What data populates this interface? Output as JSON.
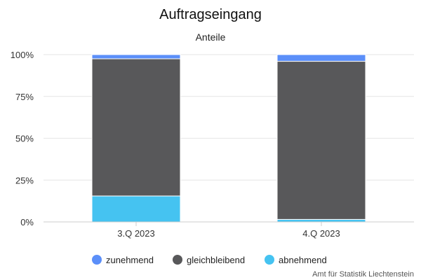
{
  "chart_data": {
    "type": "bar",
    "stacked": true,
    "title": "Auftragseingang",
    "subtitle": "Anteile",
    "categories": [
      "3.Q 2023",
      "4.Q 2023"
    ],
    "series": [
      {
        "name": "zunehmend",
        "values": [
          2.5,
          4
        ],
        "color": "#5b8ff9"
      },
      {
        "name": "gleichbleibend",
        "values": [
          82,
          94.5
        ],
        "color": "#58585a"
      },
      {
        "name": "abnehmend",
        "values": [
          15.5,
          1.5
        ],
        "color": "#45c3f1"
      }
    ],
    "stack_order_bottom_to_top": [
      "abnehmend",
      "gleichbleibend",
      "zunehmend"
    ],
    "ylim": [
      0,
      100
    ],
    "yticks": [
      "0%",
      "25%",
      "50%",
      "75%",
      "100%"
    ],
    "ytick_values": [
      0,
      25,
      50,
      75,
      100
    ],
    "grid": true,
    "legend_position": "bottom-center",
    "credit": "Amt für Statistik Liechtenstein"
  }
}
